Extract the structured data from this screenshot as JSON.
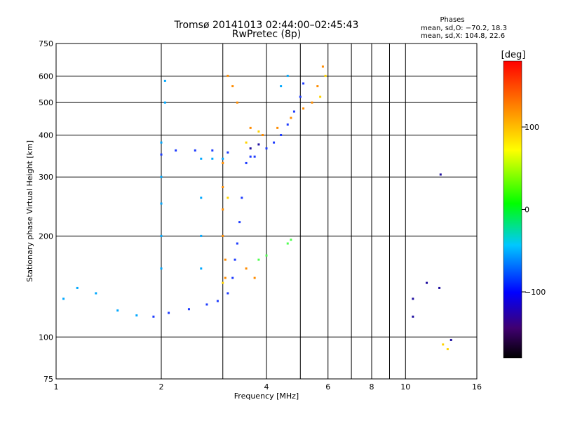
{
  "title": {
    "line1": "Tromsø 20141013 02:44:00–02:45:43",
    "line2": "RwPretec (8p)"
  },
  "phase_box": {
    "heading": "Phases",
    "line_o": "mean, sd,O: −70.2, 18.3",
    "line_x": "mean, sd,X: 104.8, 22.6"
  },
  "colorbar": {
    "unit": "[deg]",
    "ticks": [
      {
        "label": "100",
        "value": 100
      },
      {
        "label": "0",
        "value": 0
      },
      {
        "label": "−100",
        "value": -100
      }
    ],
    "range": [
      -180,
      180
    ]
  },
  "chart_data": {
    "type": "scatter",
    "xlabel": "Frequency [MHz]",
    "ylabel": "Stationary phase Virtual Height [km]",
    "x_scale": "log",
    "y_scale": "log",
    "xlim": [
      1,
      16
    ],
    "ylim": [
      75,
      750
    ],
    "grid": true,
    "x_ticks": [
      {
        "value": 1,
        "label": "1"
      },
      {
        "value": 2,
        "label": "2"
      },
      {
        "value": 4,
        "label": "4"
      },
      {
        "value": 6,
        "label": "6"
      },
      {
        "value": 8,
        "label": "8"
      },
      {
        "value": 10,
        "label": "10"
      },
      {
        "value": 16,
        "label": "16"
      }
    ],
    "x_minor": [
      3,
      5,
      7,
      9
    ],
    "y_ticks": [
      {
        "value": 75,
        "label": "75"
      },
      {
        "value": 100,
        "label": "100"
      },
      {
        "value": 200,
        "label": "200"
      },
      {
        "value": 300,
        "label": "300"
      },
      {
        "value": 400,
        "label": "400"
      },
      {
        "value": 500,
        "label": "500"
      },
      {
        "value": 600,
        "label": "600"
      },
      {
        "value": 750,
        "label": "750"
      }
    ],
    "series": [
      {
        "color": "#1e3cff",
        "points": [
          [
            1.9,
            115
          ],
          [
            2.1,
            118
          ],
          [
            2.4,
            121
          ],
          [
            2.7,
            125
          ],
          [
            2.9,
            128
          ],
          [
            3.1,
            135
          ],
          [
            3.2,
            150
          ],
          [
            3.25,
            170
          ],
          [
            3.3,
            190
          ],
          [
            3.35,
            220
          ],
          [
            3.4,
            260
          ],
          [
            3.5,
            330
          ],
          [
            3.7,
            345
          ],
          [
            4.0,
            365
          ],
          [
            4.2,
            380
          ],
          [
            4.4,
            400
          ],
          [
            4.6,
            430
          ],
          [
            4.8,
            470
          ],
          [
            5.0,
            520
          ],
          [
            5.1,
            570
          ],
          [
            2.0,
            350
          ],
          [
            2.2,
            360
          ],
          [
            2.5,
            360
          ],
          [
            2.8,
            360
          ],
          [
            3.1,
            355
          ],
          [
            3.6,
            345
          ]
        ]
      },
      {
        "color": "#00a8ff",
        "points": [
          [
            1.05,
            130
          ],
          [
            1.15,
            140
          ],
          [
            1.3,
            135
          ],
          [
            1.5,
            120
          ],
          [
            1.7,
            116
          ],
          [
            2.0,
            380
          ],
          [
            2.0,
            300
          ],
          [
            2.0,
            250
          ],
          [
            2.0,
            200
          ],
          [
            2.0,
            160
          ],
          [
            2.05,
            500
          ],
          [
            2.05,
            580
          ],
          [
            2.6,
            340
          ],
          [
            2.6,
            260
          ],
          [
            2.6,
            200
          ],
          [
            2.6,
            160
          ],
          [
            2.8,
            340
          ],
          [
            3.0,
            340
          ],
          [
            4.4,
            560
          ],
          [
            4.6,
            600
          ]
        ]
      },
      {
        "color": "#ff8c00",
        "points": [
          [
            3.0,
            330
          ],
          [
            3.0,
            280
          ],
          [
            3.0,
            240
          ],
          [
            3.0,
            200
          ],
          [
            3.05,
            170
          ],
          [
            3.05,
            150
          ],
          [
            3.1,
            600
          ],
          [
            3.2,
            560
          ],
          [
            3.3,
            500
          ],
          [
            3.6,
            420
          ],
          [
            3.9,
            400
          ],
          [
            4.3,
            420
          ],
          [
            4.7,
            450
          ],
          [
            5.1,
            480
          ],
          [
            5.4,
            500
          ],
          [
            5.6,
            560
          ],
          [
            5.8,
            640
          ],
          [
            3.5,
            160
          ],
          [
            3.7,
            150
          ]
        ]
      },
      {
        "color": "#ffd400",
        "points": [
          [
            3.0,
            145
          ],
          [
            3.1,
            260
          ],
          [
            3.5,
            380
          ],
          [
            3.8,
            410
          ],
          [
            5.7,
            520
          ],
          [
            5.9,
            600
          ],
          [
            12.8,
            95
          ],
          [
            13.2,
            92
          ]
        ]
      },
      {
        "color": "#50ff50",
        "points": [
          [
            4.6,
            190
          ],
          [
            4.7,
            195
          ],
          [
            4.0,
            175
          ],
          [
            3.8,
            170
          ]
        ]
      },
      {
        "color": "#2010a0",
        "points": [
          [
            3.6,
            365
          ],
          [
            3.8,
            375
          ],
          [
            10.5,
            130
          ],
          [
            10.5,
            115
          ],
          [
            11.5,
            145
          ],
          [
            12.5,
            140
          ],
          [
            13.5,
            98
          ],
          [
            12.6,
            305
          ]
        ]
      }
    ]
  }
}
